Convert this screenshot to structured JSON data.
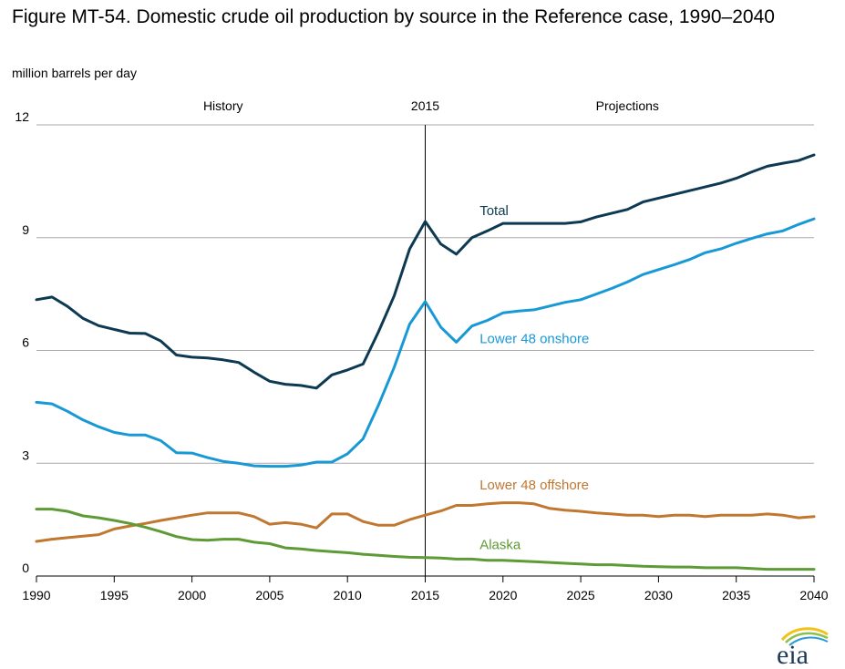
{
  "title": "Figure MT-54. Domestic crude oil production by source in the Reference case, 1990–2040",
  "units_label": "million barrels per day",
  "segments": {
    "history": "History",
    "divider": "2015",
    "projections": "Projections"
  },
  "logo_text": "eia",
  "colors": {
    "total": "#0d3a52",
    "onshore": "#1899d6",
    "offshore": "#c07830",
    "alaska": "#5e9a35"
  },
  "chart_data": {
    "type": "line",
    "xlabel": "",
    "ylabel": "million barrels per day",
    "xlim": [
      1990,
      2040
    ],
    "ylim": [
      0,
      12
    ],
    "yticks": [
      0,
      3,
      6,
      9,
      12
    ],
    "xticks": [
      1990,
      1995,
      2000,
      2005,
      2010,
      2015,
      2020,
      2025,
      2030,
      2035,
      2040
    ],
    "grid": "horizontal",
    "divider_x": 2015,
    "series": [
      {
        "name": "Total",
        "key": "total",
        "label_at": [
          2018.5,
          9.6
        ],
        "points": [
          [
            1990,
            7.35
          ],
          [
            1991,
            7.42
          ],
          [
            1992,
            7.17
          ],
          [
            1993,
            6.85
          ],
          [
            1994,
            6.66
          ],
          [
            1995,
            6.56
          ],
          [
            1996,
            6.46
          ],
          [
            1997,
            6.45
          ],
          [
            1998,
            6.25
          ],
          [
            1999,
            5.88
          ],
          [
            2000,
            5.82
          ],
          [
            2001,
            5.8
          ],
          [
            2002,
            5.75
          ],
          [
            2003,
            5.68
          ],
          [
            2004,
            5.42
          ],
          [
            2005,
            5.18
          ],
          [
            2006,
            5.1
          ],
          [
            2007,
            5.07
          ],
          [
            2008,
            5.0
          ],
          [
            2009,
            5.35
          ],
          [
            2010,
            5.48
          ],
          [
            2011,
            5.64
          ],
          [
            2012,
            6.5
          ],
          [
            2013,
            7.45
          ],
          [
            2014,
            8.7
          ],
          [
            2015,
            9.43
          ],
          [
            2016,
            8.83
          ],
          [
            2017,
            8.56
          ],
          [
            2018,
            9.0
          ],
          [
            2019,
            9.18
          ],
          [
            2020,
            9.38
          ],
          [
            2022,
            9.38
          ],
          [
            2024,
            9.38
          ],
          [
            2025,
            9.42
          ],
          [
            2026,
            9.55
          ],
          [
            2027,
            9.65
          ],
          [
            2028,
            9.75
          ],
          [
            2029,
            9.95
          ],
          [
            2030,
            10.05
          ],
          [
            2031,
            10.15
          ],
          [
            2032,
            10.25
          ],
          [
            2033,
            10.35
          ],
          [
            2034,
            10.45
          ],
          [
            2035,
            10.58
          ],
          [
            2036,
            10.75
          ],
          [
            2037,
            10.9
          ],
          [
            2038,
            10.98
          ],
          [
            2039,
            11.05
          ],
          [
            2040,
            11.2
          ]
        ]
      },
      {
        "name": "Lower 48 onshore",
        "key": "onshore",
        "label_at": [
          2018.5,
          6.2
        ],
        "points": [
          [
            1990,
            4.62
          ],
          [
            1991,
            4.58
          ],
          [
            1992,
            4.38
          ],
          [
            1993,
            4.15
          ],
          [
            1994,
            3.97
          ],
          [
            1995,
            3.82
          ],
          [
            1996,
            3.75
          ],
          [
            1997,
            3.75
          ],
          [
            1998,
            3.6
          ],
          [
            1999,
            3.28
          ],
          [
            2000,
            3.27
          ],
          [
            2001,
            3.15
          ],
          [
            2002,
            3.05
          ],
          [
            2003,
            3.0
          ],
          [
            2004,
            2.93
          ],
          [
            2005,
            2.92
          ],
          [
            2006,
            2.92
          ],
          [
            2007,
            2.95
          ],
          [
            2008,
            3.03
          ],
          [
            2009,
            3.03
          ],
          [
            2010,
            3.25
          ],
          [
            2011,
            3.65
          ],
          [
            2012,
            4.55
          ],
          [
            2013,
            5.55
          ],
          [
            2014,
            6.7
          ],
          [
            2015,
            7.3
          ],
          [
            2016,
            6.62
          ],
          [
            2017,
            6.22
          ],
          [
            2018,
            6.65
          ],
          [
            2019,
            6.8
          ],
          [
            2020,
            7.0
          ],
          [
            2021,
            7.05
          ],
          [
            2022,
            7.08
          ],
          [
            2023,
            7.18
          ],
          [
            2024,
            7.28
          ],
          [
            2025,
            7.35
          ],
          [
            2026,
            7.5
          ],
          [
            2027,
            7.65
          ],
          [
            2028,
            7.82
          ],
          [
            2029,
            8.02
          ],
          [
            2030,
            8.15
          ],
          [
            2031,
            8.28
          ],
          [
            2032,
            8.42
          ],
          [
            2033,
            8.6
          ],
          [
            2034,
            8.7
          ],
          [
            2035,
            8.85
          ],
          [
            2036,
            8.98
          ],
          [
            2037,
            9.1
          ],
          [
            2038,
            9.18
          ],
          [
            2039,
            9.35
          ],
          [
            2040,
            9.5
          ]
        ]
      },
      {
        "name": "Lower 48 offshore",
        "key": "offshore",
        "label_at": [
          2018.5,
          2.3
        ],
        "points": [
          [
            1990,
            0.92
          ],
          [
            1991,
            0.98
          ],
          [
            1992,
            1.02
          ],
          [
            1993,
            1.06
          ],
          [
            1994,
            1.1
          ],
          [
            1995,
            1.25
          ],
          [
            1996,
            1.33
          ],
          [
            1997,
            1.4
          ],
          [
            1998,
            1.48
          ],
          [
            1999,
            1.55
          ],
          [
            2000,
            1.62
          ],
          [
            2001,
            1.68
          ],
          [
            2002,
            1.68
          ],
          [
            2003,
            1.68
          ],
          [
            2004,
            1.58
          ],
          [
            2005,
            1.38
          ],
          [
            2006,
            1.42
          ],
          [
            2007,
            1.38
          ],
          [
            2008,
            1.28
          ],
          [
            2009,
            1.65
          ],
          [
            2010,
            1.65
          ],
          [
            2011,
            1.45
          ],
          [
            2012,
            1.35
          ],
          [
            2013,
            1.35
          ],
          [
            2014,
            1.5
          ],
          [
            2015,
            1.62
          ],
          [
            2016,
            1.73
          ],
          [
            2017,
            1.88
          ],
          [
            2018,
            1.88
          ],
          [
            2019,
            1.92
          ],
          [
            2020,
            1.95
          ],
          [
            2021,
            1.95
          ],
          [
            2022,
            1.92
          ],
          [
            2023,
            1.8
          ],
          [
            2024,
            1.75
          ],
          [
            2025,
            1.72
          ],
          [
            2026,
            1.68
          ],
          [
            2027,
            1.65
          ],
          [
            2028,
            1.62
          ],
          [
            2029,
            1.62
          ],
          [
            2030,
            1.58
          ],
          [
            2031,
            1.62
          ],
          [
            2032,
            1.62
          ],
          [
            2033,
            1.58
          ],
          [
            2034,
            1.62
          ],
          [
            2035,
            1.62
          ],
          [
            2036,
            1.62
          ],
          [
            2037,
            1.65
          ],
          [
            2038,
            1.62
          ],
          [
            2039,
            1.55
          ],
          [
            2040,
            1.58
          ]
        ]
      },
      {
        "name": "Alaska",
        "key": "alaska",
        "label_at": [
          2018.5,
          0.72
        ],
        "points": [
          [
            1990,
            1.78
          ],
          [
            1991,
            1.78
          ],
          [
            1992,
            1.72
          ],
          [
            1993,
            1.6
          ],
          [
            1994,
            1.55
          ],
          [
            1995,
            1.48
          ],
          [
            1996,
            1.4
          ],
          [
            1997,
            1.3
          ],
          [
            1998,
            1.18
          ],
          [
            1999,
            1.05
          ],
          [
            2000,
            0.97
          ],
          [
            2001,
            0.95
          ],
          [
            2002,
            0.98
          ],
          [
            2003,
            0.98
          ],
          [
            2004,
            0.9
          ],
          [
            2005,
            0.86
          ],
          [
            2006,
            0.75
          ],
          [
            2007,
            0.72
          ],
          [
            2008,
            0.68
          ],
          [
            2009,
            0.65
          ],
          [
            2010,
            0.62
          ],
          [
            2011,
            0.58
          ],
          [
            2012,
            0.55
          ],
          [
            2013,
            0.52
          ],
          [
            2014,
            0.5
          ],
          [
            2015,
            0.49
          ],
          [
            2016,
            0.48
          ],
          [
            2017,
            0.45
          ],
          [
            2018,
            0.45
          ],
          [
            2019,
            0.42
          ],
          [
            2020,
            0.42
          ],
          [
            2021,
            0.4
          ],
          [
            2022,
            0.38
          ],
          [
            2023,
            0.36
          ],
          [
            2024,
            0.34
          ],
          [
            2025,
            0.32
          ],
          [
            2026,
            0.3
          ],
          [
            2027,
            0.3
          ],
          [
            2028,
            0.28
          ],
          [
            2029,
            0.26
          ],
          [
            2030,
            0.25
          ],
          [
            2031,
            0.24
          ],
          [
            2032,
            0.24
          ],
          [
            2033,
            0.22
          ],
          [
            2034,
            0.22
          ],
          [
            2035,
            0.22
          ],
          [
            2036,
            0.2
          ],
          [
            2037,
            0.18
          ],
          [
            2038,
            0.18
          ],
          [
            2039,
            0.18
          ],
          [
            2040,
            0.18
          ]
        ]
      }
    ]
  }
}
